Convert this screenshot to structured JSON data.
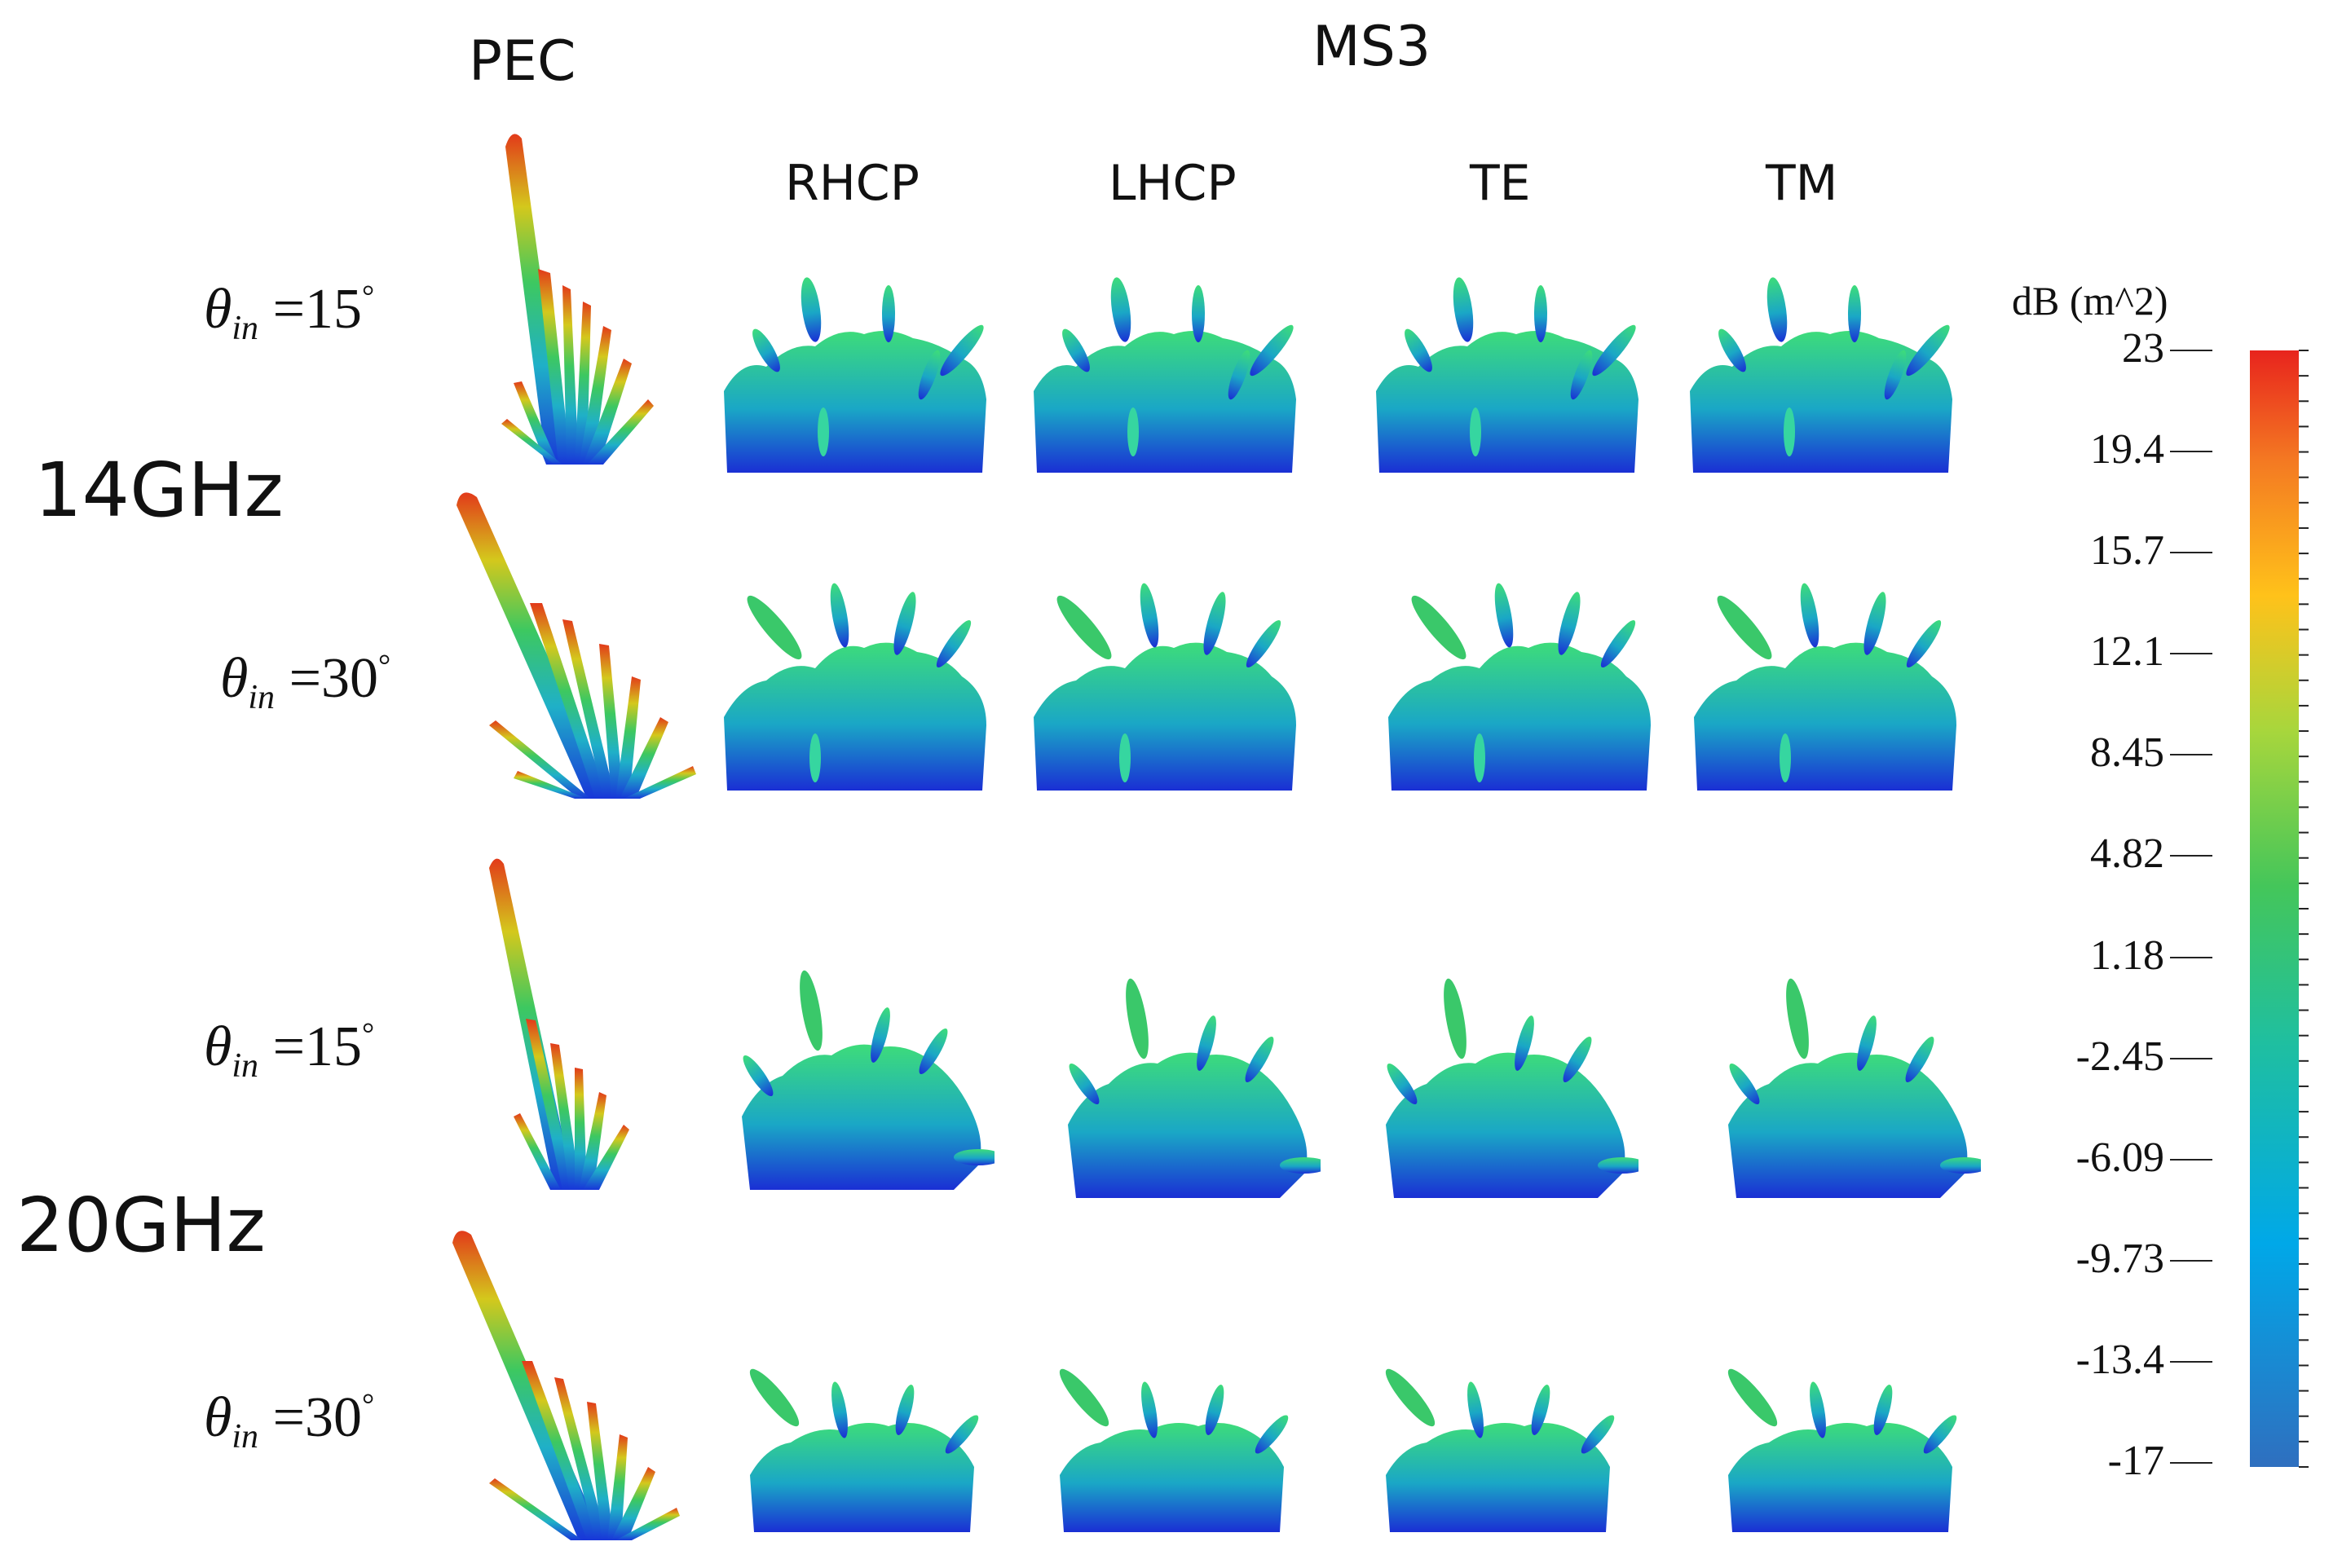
{
  "headers": {
    "pec": "PEC",
    "ms3": "MS3"
  },
  "columns": [
    "RHCP",
    "LHCP",
    "TE",
    "TM"
  ],
  "frequencies": [
    "14GHz",
    "20GHz"
  ],
  "angles": {
    "row1": {
      "symbol": "θ",
      "subscript": "in",
      "eq": "=",
      "value": "15",
      "unit": "°"
    },
    "row2": {
      "symbol": "θ",
      "subscript": "in",
      "eq": "=",
      "value": "30",
      "unit": "°"
    },
    "row3": {
      "symbol": "θ",
      "subscript": "in",
      "eq": "=",
      "value": "15",
      "unit": "°"
    },
    "row4": {
      "symbol": "θ",
      "subscript": "in",
      "eq": "=",
      "value": "30",
      "unit": "°"
    }
  },
  "colorbar": {
    "unit": "dB (m^2)",
    "ticks": [
      "23",
      "19.4",
      "15.7",
      "12.1",
      "8.45",
      "4.82",
      "1.18",
      "-2.45",
      "-6.09",
      "-9.73",
      "-13.4",
      "-17"
    ],
    "min": -17,
    "max": 23,
    "colors": [
      "#2f6fbf",
      "#00a8e8",
      "#1fbfa0",
      "#44c65a",
      "#a8d63c",
      "#ffc21a",
      "#f47a22",
      "#e8241d"
    ]
  }
}
